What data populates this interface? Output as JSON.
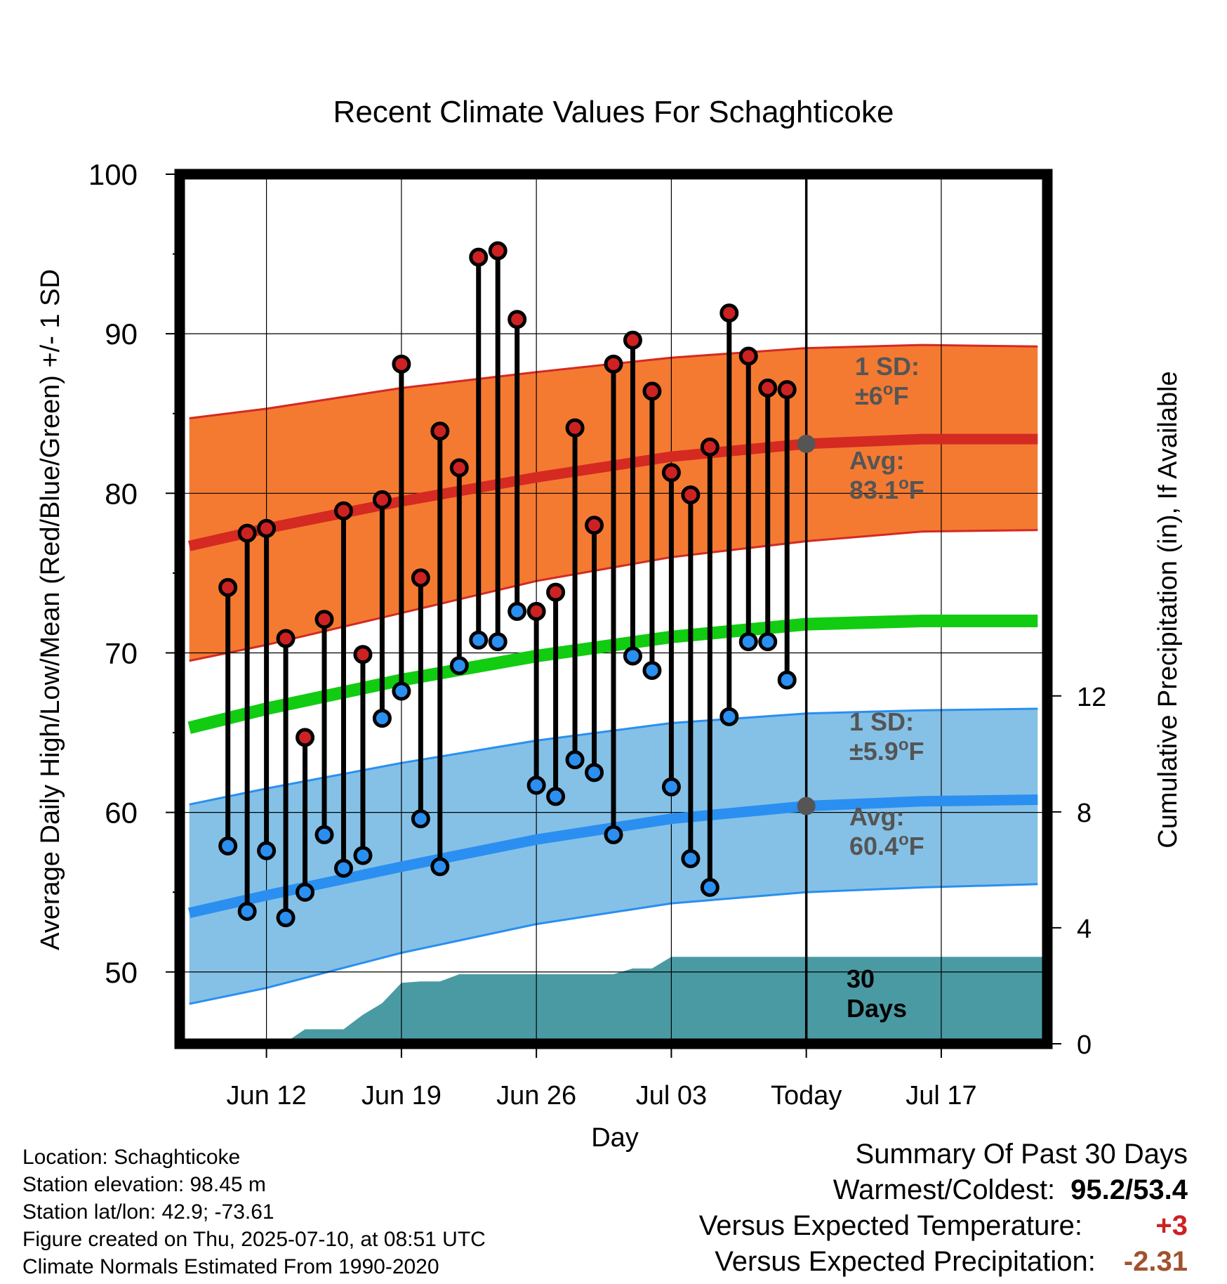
{
  "chart_data": {
    "type": "line",
    "title": "Recent Climate Values For Schaghticoke",
    "xlabel": "Day",
    "ylabel": "Average Daily High/Low/Mean (Red/Blue/Green) +/- 1 SD",
    "y2label": "Cumulative Precipitation (in), If Available",
    "ylim": [
      45.5,
      100
    ],
    "y2lim": [
      0,
      30
    ],
    "x_range_days": [
      -32.5,
      12.5
    ],
    "x_ticks": [
      {
        "day": -28,
        "label": "Jun 12"
      },
      {
        "day": -21,
        "label": "Jun 19"
      },
      {
        "day": -14,
        "label": "Jun 26"
      },
      {
        "day": -7,
        "label": "Jul 03"
      },
      {
        "day": 0,
        "label": "Today"
      },
      {
        "day": 7,
        "label": "Jul 17"
      }
    ],
    "y_ticks": [
      "100",
      "90",
      "80",
      "70",
      "60",
      "50"
    ],
    "y2_ticks": [
      "12",
      "8",
      "4",
      "0"
    ],
    "grid": true,
    "today_marker_day": 0,
    "normals": {
      "days": [
        -32,
        -28,
        -21,
        -14,
        -7,
        0,
        6,
        12
      ],
      "high_avg": [
        76.7,
        77.8,
        79.5,
        81.0,
        82.3,
        83.1,
        83.4,
        83.4
      ],
      "high_upper": [
        84.7,
        85.3,
        86.6,
        87.6,
        88.5,
        89.1,
        89.3,
        89.2
      ],
      "high_lower": [
        69.5,
        70.5,
        72.5,
        74.5,
        76.0,
        77.0,
        77.6,
        77.7
      ],
      "mean": [
        65.3,
        66.5,
        68.3,
        69.8,
        71.0,
        71.8,
        72.0,
        72.0
      ],
      "low_avg": [
        53.7,
        54.8,
        56.6,
        58.3,
        59.6,
        60.4,
        60.7,
        60.8
      ],
      "low_upper": [
        60.5,
        61.5,
        63.1,
        64.5,
        65.6,
        66.2,
        66.4,
        66.5
      ],
      "low_lower": [
        48.0,
        49.0,
        51.2,
        53.0,
        54.3,
        55.0,
        55.3,
        55.5
      ]
    },
    "series": [
      {
        "name": "High",
        "color": "#cc2222",
        "days": [
          -30,
          -29,
          -28,
          -27,
          -26,
          -25,
          -24,
          -23,
          -22,
          -21,
          -20,
          -19,
          -18,
          -17,
          -16,
          -15,
          -14,
          -13,
          -12,
          -11,
          -10,
          -9,
          -8,
          -7,
          -6,
          -5,
          -4,
          -3,
          -2,
          -1
        ],
        "values": [
          74.1,
          77.5,
          77.8,
          70.9,
          64.7,
          72.1,
          78.9,
          69.9,
          79.6,
          88.1,
          74.7,
          83.9,
          81.6,
          94.8,
          95.2,
          90.9,
          72.6,
          73.8,
          84.1,
          78.0,
          88.1,
          89.6,
          86.4,
          81.3,
          79.9,
          82.9,
          91.3,
          88.6,
          86.6,
          86.5
        ]
      },
      {
        "name": "Low",
        "color": "#2a8ff0",
        "days": [
          -30,
          -29,
          -28,
          -27,
          -26,
          -25,
          -24,
          -23,
          -22,
          -21,
          -20,
          -19,
          -18,
          -17,
          -16,
          -15,
          -14,
          -13,
          -12,
          -11,
          -10,
          -9,
          -8,
          -7,
          -6,
          -5,
          -4,
          -3,
          -2,
          -1
        ],
        "values": [
          57.9,
          53.8,
          57.6,
          53.4,
          55.0,
          58.6,
          56.5,
          57.3,
          65.9,
          67.6,
          59.6,
          56.6,
          69.2,
          70.8,
          70.7,
          72.6,
          61.7,
          61.0,
          63.3,
          62.5,
          58.6,
          69.8,
          68.9,
          61.6,
          57.1,
          55.3,
          66.0,
          70.7,
          70.7,
          68.3
        ]
      },
      {
        "name": "Precipitation",
        "color": "#4a9aa4",
        "days": [
          -32.5,
          -30,
          -29,
          -28,
          -27,
          -26,
          -25,
          -24,
          -23,
          -22,
          -21,
          -20,
          -19,
          -18,
          -17,
          -16,
          -15,
          -14,
          -13,
          -12,
          -11,
          -10,
          -9,
          -8,
          -7,
          -6,
          -5,
          -4,
          -3,
          -2,
          -1,
          0,
          12.5
        ],
        "values": [
          0,
          0,
          0,
          0,
          0.05,
          0.5,
          0.5,
          0.5,
          1.0,
          1.4,
          2.1,
          2.15,
          2.15,
          2.4,
          2.4,
          2.4,
          2.4,
          2.4,
          2.4,
          2.4,
          2.4,
          2.4,
          2.6,
          2.6,
          3.0,
          3.0,
          3.0,
          3.0,
          3.0,
          3.0,
          3.0,
          3.0,
          3.0
        ]
      }
    ],
    "annotations": {
      "high_sd": [
        "1 SD:",
        "±6",
        "F"
      ],
      "high_avg": [
        "Avg:",
        "83.1",
        "F"
      ],
      "low_sd": [
        "1 SD:",
        "±5.9",
        "F"
      ],
      "low_avg": [
        "Avg:",
        "60.4",
        "F"
      ],
      "precip_window": [
        "30",
        "Days"
      ],
      "degree_symbol": "o"
    }
  },
  "footer": {
    "location": "Location: Schaghticoke",
    "elevation": "Station elevation: 98.45 m",
    "latlon": "Station lat/lon: 42.9; -73.61",
    "created": "Figure created on Thu, 2025-07-10, at 08:51 UTC",
    "normals": "Climate Normals Estimated From 1990-2020"
  },
  "summary": {
    "title": "Summary Of Past 30 Days",
    "warm_cold_label": "Warmest/Coldest:",
    "warm_cold_value": "95.2/53.4",
    "temp_label": "Versus Expected Temperature:",
    "temp_value": "+3",
    "temp_color": "#cc2222",
    "precip_label": "Versus Expected Precipitation:",
    "precip_value": "-2.31",
    "precip_color": "#a0522d"
  },
  "colors": {
    "high_band": "#f47a32",
    "high_line": "#d42a22",
    "low_band": "#85c1e6",
    "low_line": "#2a8ff0",
    "mean_line": "#11cc11",
    "precip_fill": "#4a9aa4",
    "marker_avg": "#555555",
    "annotation_text": "#555555"
  }
}
